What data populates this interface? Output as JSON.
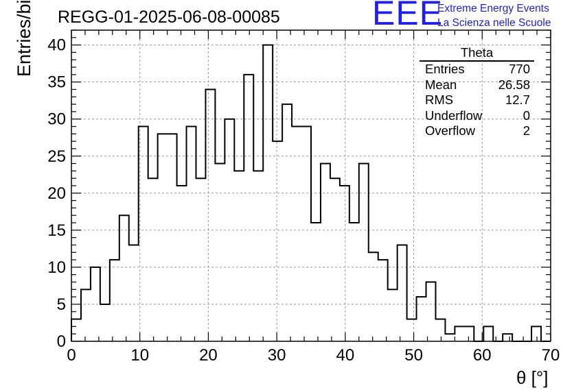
{
  "header": {
    "run_title": "REGG-01-2025-06-08-00085",
    "logo_text": "EEE",
    "logo_line1": "Extreme Energy Events",
    "logo_line2": "La Scienza nelle Scuole",
    "logo_color": "#1f1fe6"
  },
  "stats_box": {
    "title": "Theta",
    "rows": [
      {
        "label": "Entries",
        "value": "770"
      },
      {
        "label": "Mean",
        "value": "26.58"
      },
      {
        "label": "RMS",
        "value": "12.7"
      },
      {
        "label": "Underflow",
        "value": "0"
      },
      {
        "label": "Overflow",
        "value": "2"
      }
    ]
  },
  "chart_data": {
    "type": "histogram",
    "title": "REGG-01-2025-06-08-00085",
    "xlabel": "θ [°]",
    "ylabel": "Entries/bin",
    "xlim": [
      0,
      70
    ],
    "ylim": [
      0,
      42
    ],
    "bin_width": 1.4,
    "x_ticks": [
      0,
      10,
      20,
      30,
      40,
      50,
      60,
      70
    ],
    "y_ticks": [
      0,
      5,
      10,
      15,
      20,
      25,
      30,
      35,
      40
    ],
    "grid": true,
    "line_color": "#000000",
    "values": [
      3,
      7,
      10,
      5,
      11,
      17,
      13,
      29,
      22,
      28,
      28,
      21,
      29,
      22,
      34,
      24,
      30,
      23,
      36,
      23,
      40,
      27,
      32,
      29,
      29,
      16,
      24,
      22,
      21,
      16,
      24,
      12,
      11,
      7,
      13,
      3,
      6,
      8,
      3,
      1,
      2,
      2,
      0,
      2,
      0,
      1,
      0,
      0,
      2,
      0
    ]
  }
}
